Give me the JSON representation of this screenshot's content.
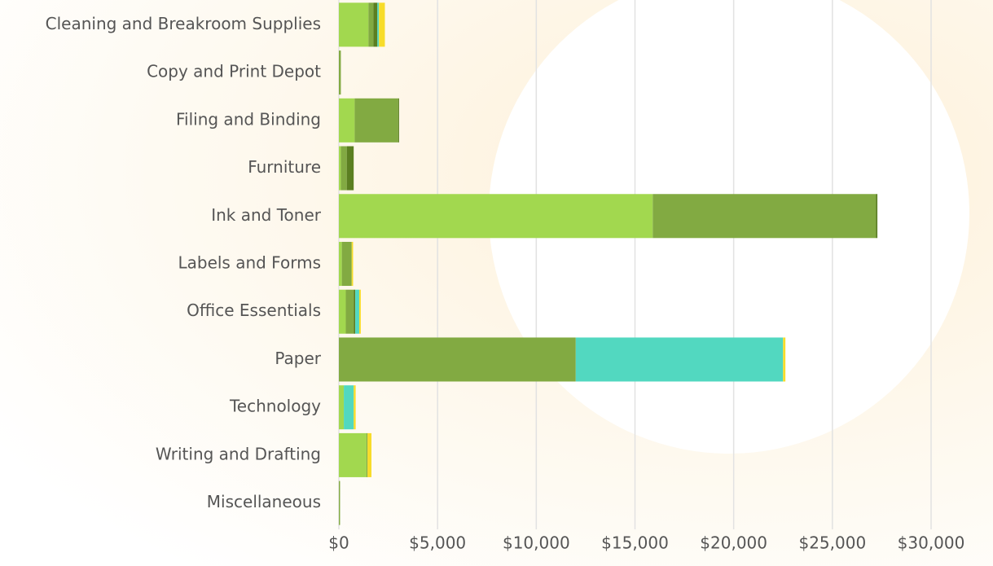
{
  "chart_data": {
    "type": "stacked_bar_horizontal",
    "categories": [
      "Cleaning and Breakroom Supplies",
      "Copy and Print Depot",
      "Filing and Binding",
      "Furniture",
      "Ink and Toner",
      "Labels and Forms",
      "Office Essentials",
      "Paper",
      "Technology",
      "Writing and Drafting",
      "Miscellaneous"
    ],
    "series": [
      {
        "color": "#a2d84f",
        "values": [
          1500,
          0,
          800,
          100,
          15900,
          150,
          350,
          0,
          250,
          1400,
          0
        ]
      },
      {
        "color": "#82aa42",
        "values": [
          250,
          100,
          2200,
          300,
          11300,
          500,
          400,
          12000,
          0,
          50,
          60
        ]
      },
      {
        "color": "#5b7f21",
        "values": [
          200,
          0,
          50,
          350,
          80,
          0,
          80,
          0,
          0,
          0,
          0
        ]
      },
      {
        "color": "#52d8c0",
        "values": [
          80,
          0,
          0,
          0,
          0,
          0,
          200,
          10500,
          500,
          0,
          0
        ]
      },
      {
        "color": "#f7dc2a",
        "values": [
          300,
          0,
          0,
          0,
          0,
          70,
          80,
          120,
          100,
          200,
          0
        ]
      }
    ],
    "xlim": [
      0,
      30000
    ],
    "xticks": [
      {
        "value": 0,
        "label": "$0"
      },
      {
        "value": 5000,
        "label": "$5,000"
      },
      {
        "value": 10000,
        "label": "$10,000"
      },
      {
        "value": 15000,
        "label": "$15,000"
      },
      {
        "value": 20000,
        "label": "$20,000"
      },
      {
        "value": 25000,
        "label": "$25,000"
      },
      {
        "value": 30000,
        "label": "$30,000"
      }
    ],
    "grid": true
  }
}
